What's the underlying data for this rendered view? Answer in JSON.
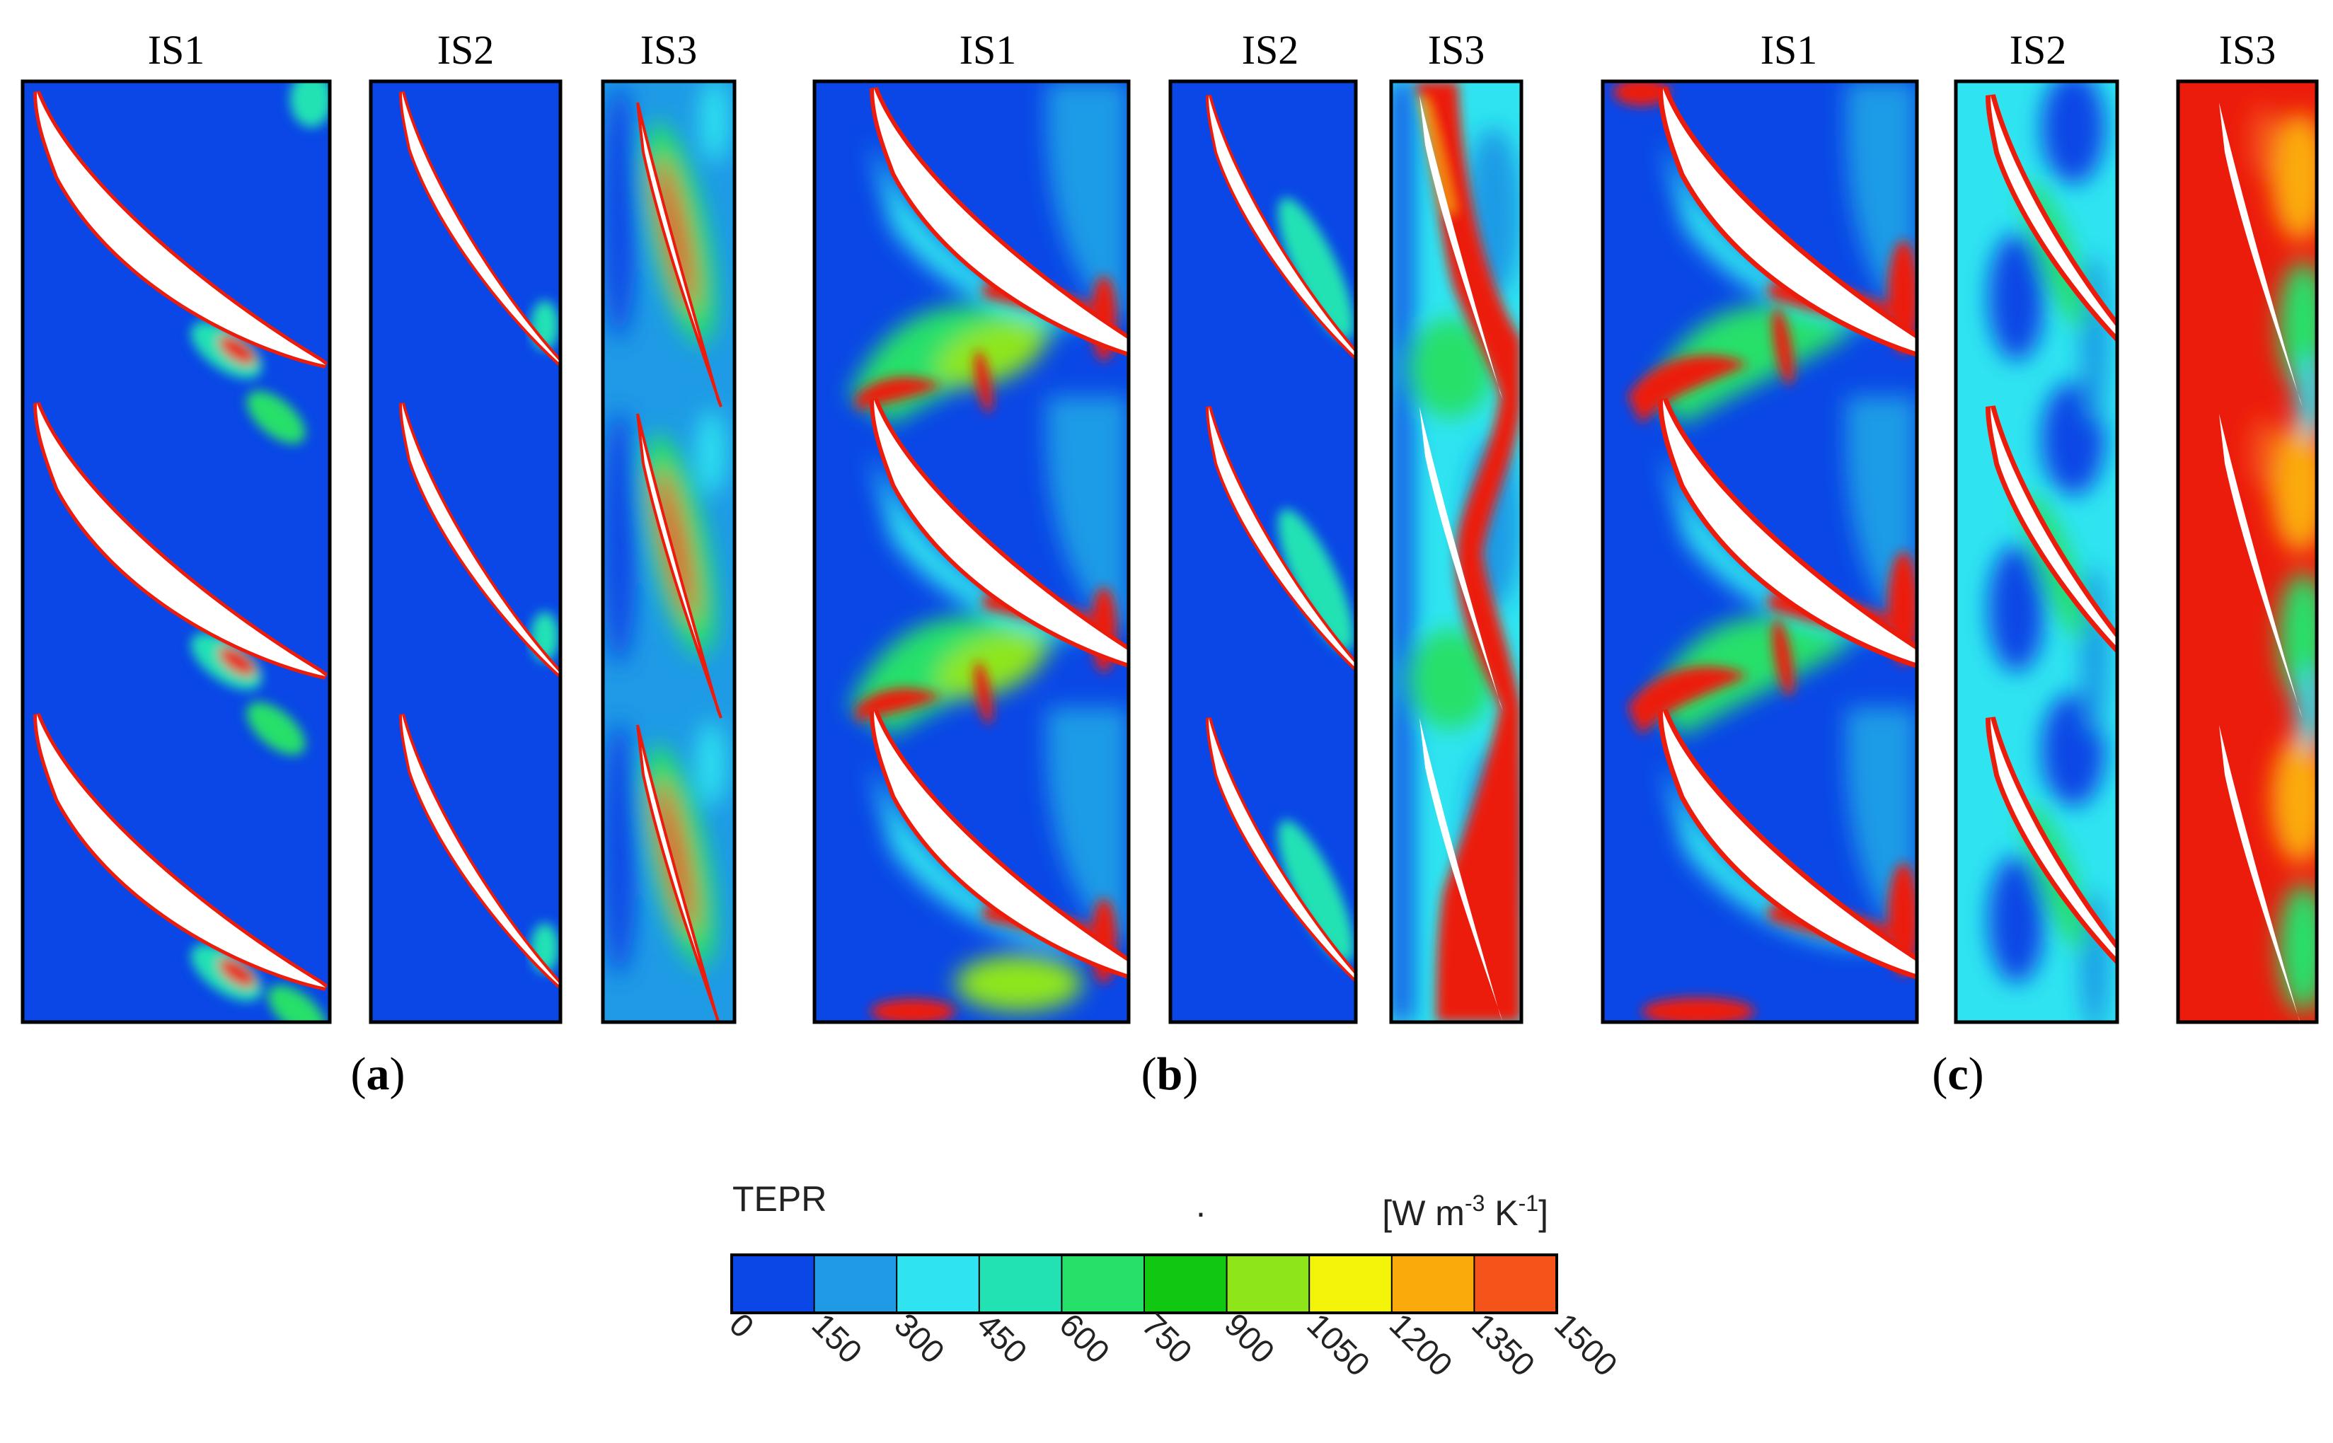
{
  "figure": {
    "cases": [
      {
        "label_open": "(",
        "label_letter": "a",
        "label_close": ")",
        "stages": [
          "IS1",
          "IS2",
          "IS3"
        ]
      },
      {
        "label_open": "(",
        "label_letter": "b",
        "label_close": ")",
        "stages": [
          "IS1",
          "IS2",
          "IS3"
        ]
      },
      {
        "label_open": "(",
        "label_letter": "c",
        "label_close": ")",
        "stages": [
          "IS1",
          "IS2",
          "IS3"
        ]
      }
    ]
  },
  "colorbar": {
    "title": "TEPR",
    "unit": "[W m",
    "unit_exp1": "-3",
    "unit_mid": " K",
    "unit_exp2": "-1",
    "unit_close": "]",
    "dot": ".",
    "ticks": [
      "0",
      "150",
      "300",
      "450",
      "600",
      "750",
      "900",
      "1050",
      "1200",
      "1350",
      "1500"
    ],
    "min": 0,
    "max": 1500,
    "colors": [
      "#0a47e6",
      "#1f9be6",
      "#2fe4f0",
      "#22e2b4",
      "#26e06a",
      "#10c812",
      "#8ee61a",
      "#f4f40a",
      "#fbaa0b",
      "#f4541a"
    ]
  },
  "palette": {
    "low": "#0a47e6",
    "mid": "#2fe4f0",
    "high": "#f4541a",
    "peak": "#ec1c0c"
  }
}
